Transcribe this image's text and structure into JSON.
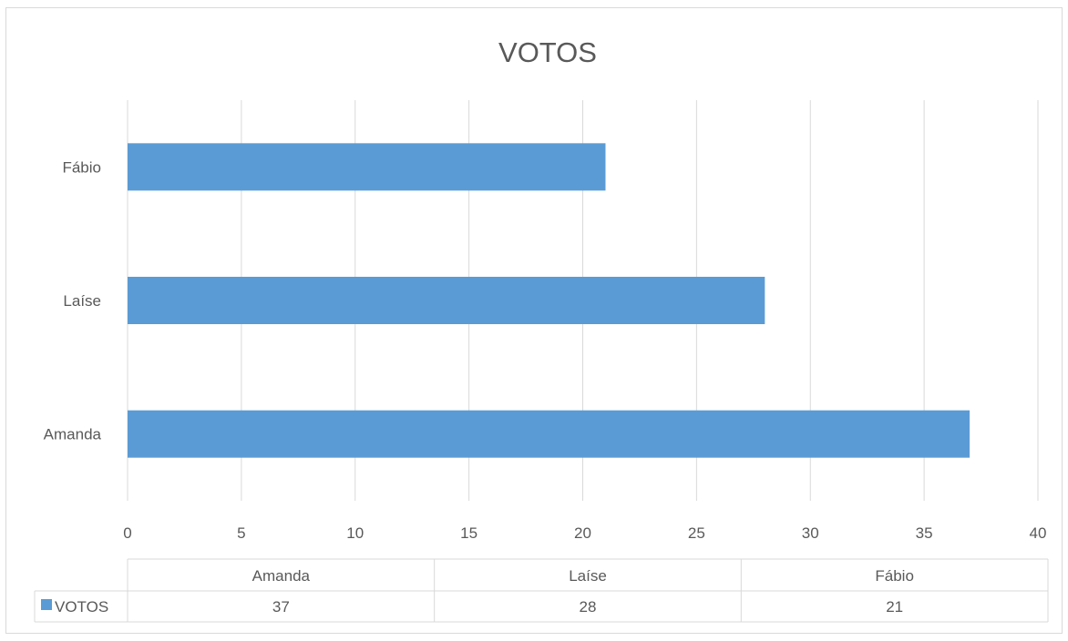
{
  "chart_data": {
    "type": "bar",
    "orientation": "horizontal",
    "title": "VOTOS",
    "categories": [
      "Amanda",
      "Laíse",
      "Fábio"
    ],
    "series": [
      {
        "name": "VOTOS",
        "values": [
          37,
          28,
          21
        ],
        "color": "#5b9bd5"
      }
    ],
    "xlim": [
      0,
      40
    ],
    "x_ticks": [
      0,
      5,
      10,
      15,
      20,
      25,
      30,
      35,
      40
    ],
    "grid": true,
    "legend": "data-table-bottom",
    "data_table": {
      "headers": [
        "Amanda",
        "Laíse",
        "Fábio"
      ],
      "row_label": "VOTOS",
      "values": [
        37,
        28,
        21
      ]
    }
  },
  "colors": {
    "bar": "#5b9bd5",
    "grid": "#d9d9d9",
    "text": "#595959"
  }
}
